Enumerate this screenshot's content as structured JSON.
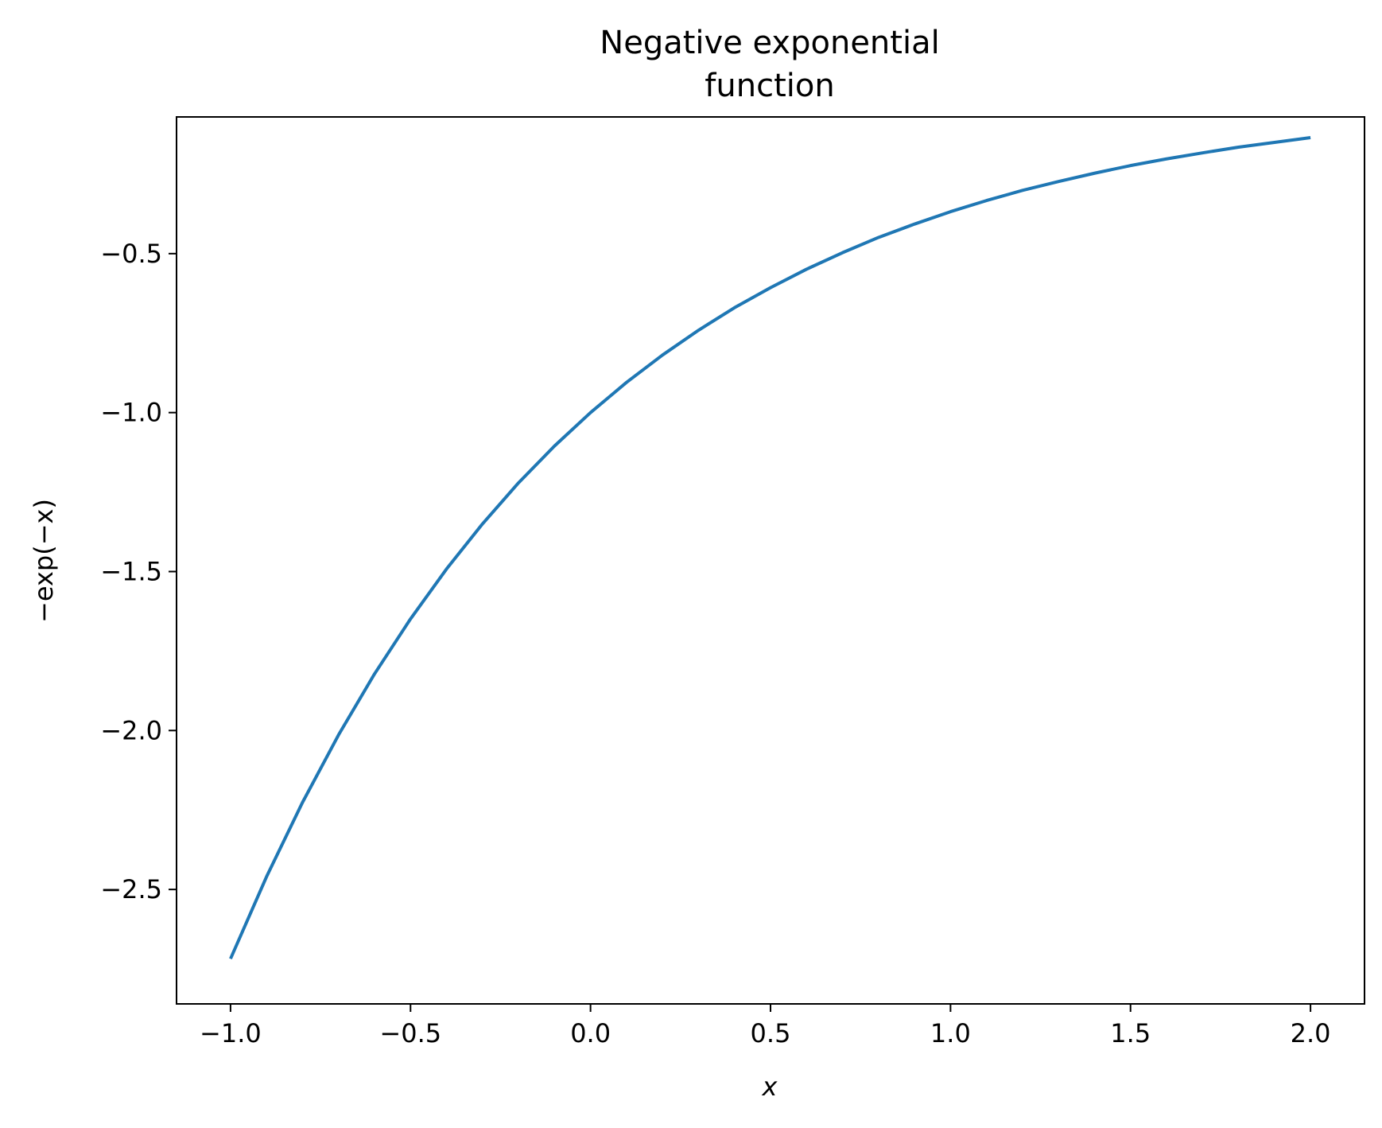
{
  "chart_data": {
    "type": "line",
    "title_lines": [
      "Negative exponential",
      "function"
    ],
    "xlabel": "x",
    "ylabel": "−exp(−x)",
    "xlim": [
      -1.15,
      2.15
    ],
    "ylim": [
      -2.86,
      -0.07
    ],
    "x_ticks": [
      {
        "value": -1.0,
        "label": "−1.0"
      },
      {
        "value": -0.5,
        "label": "−0.5"
      },
      {
        "value": 0.0,
        "label": "0.0"
      },
      {
        "value": 0.5,
        "label": "0.5"
      },
      {
        "value": 1.0,
        "label": "1.0"
      },
      {
        "value": 1.5,
        "label": "1.5"
      },
      {
        "value": 2.0,
        "label": "2.0"
      }
    ],
    "y_ticks": [
      {
        "value": -2.5,
        "label": "−2.5"
      },
      {
        "value": -2.0,
        "label": "−2.0"
      },
      {
        "value": -1.5,
        "label": "−1.5"
      },
      {
        "value": -1.0,
        "label": "−1.0"
      },
      {
        "value": -0.5,
        "label": "−0.5"
      }
    ],
    "grid": false,
    "series": [
      {
        "color": "#1f77b4",
        "x": [
          -1.0,
          -0.9,
          -0.8,
          -0.7,
          -0.6,
          -0.5,
          -0.4,
          -0.3,
          -0.2,
          -0.1,
          0.0,
          0.1,
          0.2,
          0.3,
          0.4,
          0.5,
          0.6,
          0.7,
          0.8,
          0.9,
          1.0,
          1.1,
          1.2,
          1.3,
          1.4,
          1.5,
          1.6,
          1.7,
          1.8,
          1.9,
          2.0
        ],
        "y": [
          -2.718,
          -2.46,
          -2.226,
          -2.014,
          -1.822,
          -1.649,
          -1.492,
          -1.35,
          -1.221,
          -1.105,
          -1.0,
          -0.905,
          -0.819,
          -0.741,
          -0.67,
          -0.607,
          -0.549,
          -0.497,
          -0.449,
          -0.407,
          -0.368,
          -0.333,
          -0.301,
          -0.273,
          -0.247,
          -0.223,
          -0.202,
          -0.183,
          -0.165,
          -0.15,
          -0.135
        ]
      }
    ]
  }
}
